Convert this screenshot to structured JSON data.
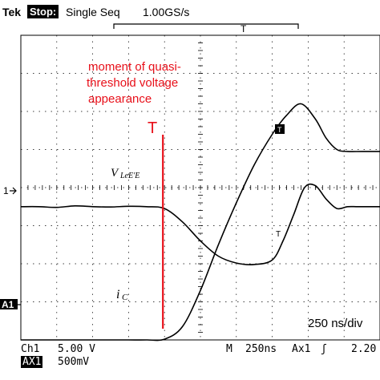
{
  "header": {
    "brand": "Tek",
    "status": "Stop:",
    "mode": "Single Seq",
    "sample_rate": "1.00GS/s",
    "trigger_bracket_marker": "T"
  },
  "annotation": {
    "line1": "moment of quasi-",
    "line2": "threshold voltage",
    "line3": "appearance",
    "trigger_cursor_label": "T",
    "timebase_note": "250 ns/div",
    "trace1_label_main": "V",
    "trace1_label_sub": "LeE'E",
    "trace2_label_main": "i",
    "trace2_label_sub": "C",
    "trace_marker_T": "T"
  },
  "markers": {
    "ch1": "1",
    "ax1": "A1"
  },
  "footer": {
    "ch1_label": "Ch1",
    "ch1_scale": "5.00 V",
    "ax1_label": "AX1",
    "ax1_scale": "500mV",
    "time_label": "M",
    "time_scale": "250ns",
    "trigger_src": "Ax1",
    "trigger_slope": "ʃ",
    "trigger_level": "2.20"
  },
  "colors": {
    "annotation": "#e8101a",
    "trace": "#000000",
    "grid": "#000000"
  },
  "chart_data": {
    "type": "line",
    "title": "",
    "xlabel": "",
    "ylabel": "",
    "x_divisions": 10,
    "y_divisions": 8,
    "grid": true,
    "xlim": [
      0,
      10
    ],
    "ylim": [
      0,
      8
    ],
    "trigger_cursor_x": 4.0,
    "series": [
      {
        "name": "V LeE'E",
        "x": [
          0,
          0.5,
          1.0,
          1.5,
          2.0,
          2.5,
          3.0,
          3.5,
          4.0,
          4.5,
          5.0,
          5.5,
          6.0,
          6.5,
          7.0,
          7.3,
          7.6,
          7.9,
          8.2,
          8.5,
          8.8,
          9.1,
          9.4,
          10
        ],
        "y": [
          3.5,
          3.5,
          3.48,
          3.52,
          3.5,
          3.49,
          3.51,
          3.5,
          3.45,
          3.1,
          2.6,
          2.2,
          2.02,
          1.98,
          2.1,
          2.6,
          3.3,
          4.0,
          4.05,
          3.7,
          3.45,
          3.5,
          3.5,
          3.5
        ]
      },
      {
        "name": "iC",
        "x": [
          0,
          0.5,
          1.0,
          1.5,
          2.0,
          2.5,
          3.0,
          3.5,
          4.0,
          4.5,
          5.0,
          5.5,
          6.0,
          6.5,
          7.0,
          7.4,
          7.8,
          8.2,
          8.5,
          8.8,
          9.1,
          9.5,
          10
        ],
        "y": [
          0,
          0,
          0,
          0,
          0,
          0,
          0,
          0,
          0.02,
          0.35,
          1.3,
          2.5,
          3.6,
          4.6,
          5.4,
          5.9,
          6.2,
          5.8,
          5.3,
          5.0,
          4.95,
          4.95,
          4.95
        ]
      }
    ]
  }
}
